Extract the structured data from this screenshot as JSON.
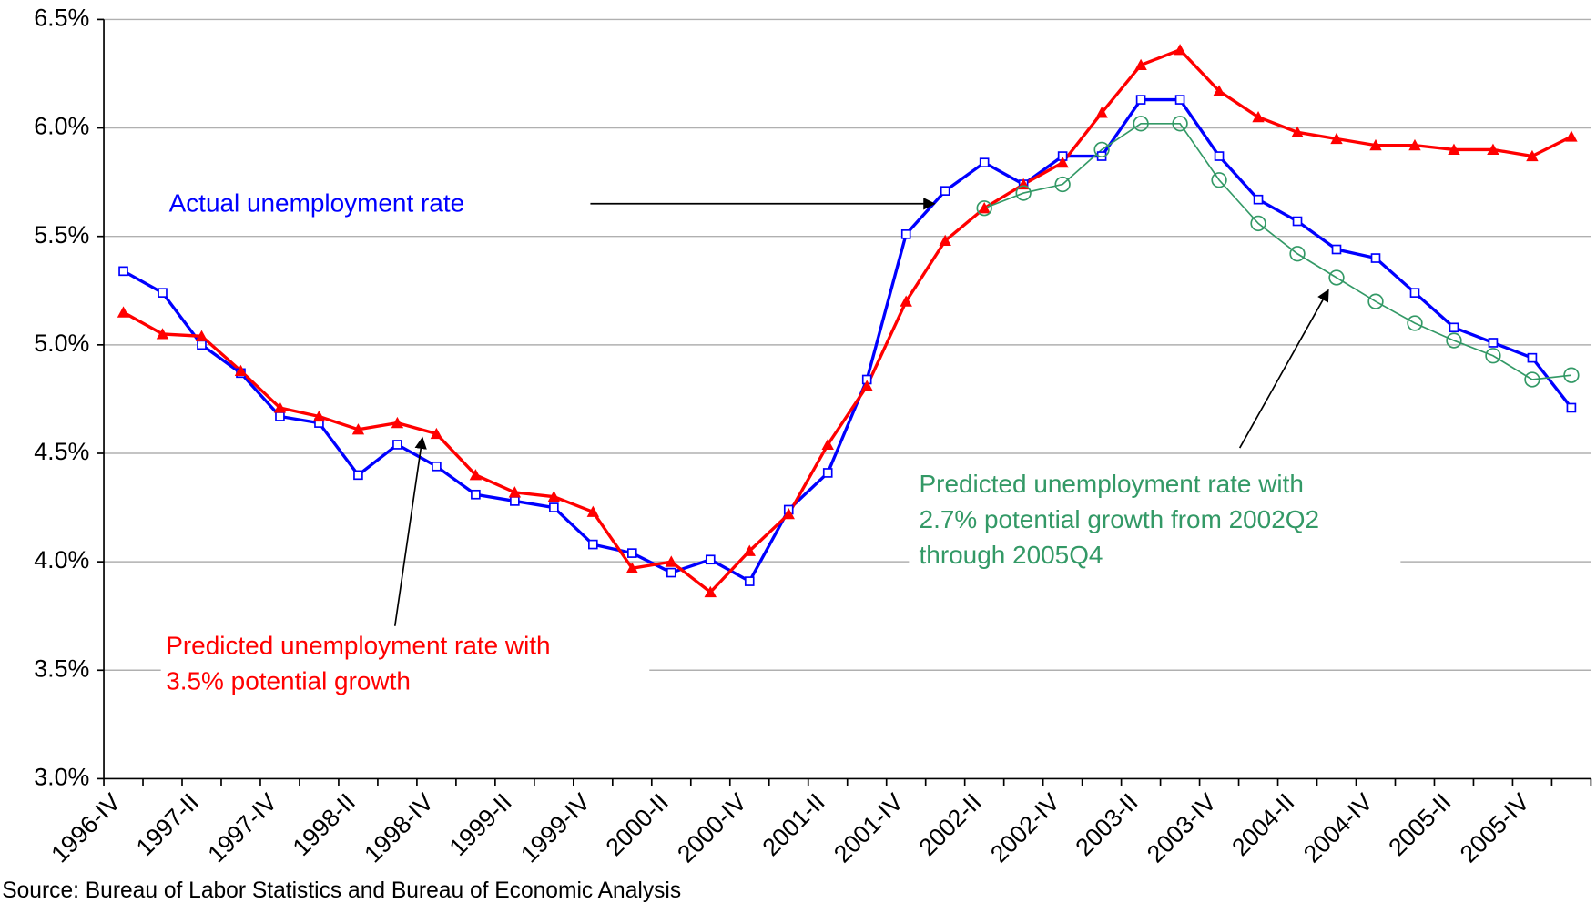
{
  "chart_data": {
    "type": "line",
    "categories": [
      "1996-IV",
      null,
      "1997-II",
      null,
      "1997-IV",
      null,
      "1998-II",
      null,
      "1998-IV",
      null,
      "1999-II",
      null,
      "1999-IV",
      null,
      "2000-II",
      null,
      "2000-IV",
      null,
      "2001-II",
      null,
      "2001-IV",
      null,
      "2002-II",
      null,
      "2002-IV",
      null,
      "2003-II",
      null,
      "2003-IV",
      null,
      "2004-II",
      null,
      "2004-IV",
      null,
      "2005-II",
      null,
      "2005-IV",
      null
    ],
    "series": [
      {
        "color": "#0000ff",
        "marker": "square",
        "values": [
          5.34,
          5.24,
          5.0,
          4.87,
          4.67,
          4.64,
          4.4,
          4.54,
          4.44,
          4.31,
          4.28,
          4.25,
          4.08,
          4.04,
          3.95,
          4.01,
          3.91,
          4.24,
          4.41,
          4.84,
          5.51,
          5.71,
          5.84,
          5.74,
          5.87,
          5.87,
          6.13,
          6.13,
          5.87,
          5.67,
          5.57,
          5.44,
          5.4,
          5.24,
          5.08,
          5.01,
          4.94,
          4.71
        ]
      },
      {
        "color": "#ff0000",
        "marker": "triangle",
        "values": [
          5.15,
          5.05,
          5.04,
          4.88,
          4.71,
          4.67,
          4.61,
          4.64,
          4.59,
          4.4,
          4.32,
          4.3,
          4.23,
          3.97,
          4.0,
          3.86,
          4.05,
          4.22,
          4.54,
          4.81,
          5.2,
          5.48,
          5.63,
          5.74,
          5.84,
          6.07,
          6.29,
          6.36,
          6.17,
          6.05,
          5.98,
          5.95,
          5.92,
          5.92,
          5.9,
          5.9,
          5.87,
          5.96
        ]
      },
      {
        "color": "#339966",
        "marker": "circle",
        "values": [
          null,
          null,
          null,
          null,
          null,
          null,
          null,
          null,
          null,
          null,
          null,
          null,
          null,
          null,
          null,
          null,
          null,
          null,
          null,
          null,
          null,
          null,
          5.63,
          5.7,
          5.74,
          5.9,
          6.02,
          6.02,
          5.76,
          5.56,
          5.42,
          5.31,
          5.2,
          5.1,
          5.02,
          4.95,
          4.84,
          4.86
        ]
      }
    ],
    "ylim": [
      3.0,
      6.5
    ],
    "yticks": [
      {
        "value": 3.0,
        "label": "3.0%"
      },
      {
        "value": 3.5,
        "label": "3.5%"
      },
      {
        "value": 4.0,
        "label": "4.0%"
      },
      {
        "value": 4.5,
        "label": "4.5%"
      },
      {
        "value": 5.0,
        "label": "5.0%"
      },
      {
        "value": 5.5,
        "label": "5.5%"
      },
      {
        "value": 6.0,
        "label": "6.0%"
      },
      {
        "value": 6.5,
        "label": "6.5%"
      }
    ],
    "grid": true,
    "annotations": [
      {
        "lines": [
          "Actual unemployment rate"
        ],
        "color": "#0000ff"
      },
      {
        "lines": [
          "Predicted unemployment rate with",
          "3.5%  potential growth"
        ],
        "color": "#ff0000"
      },
      {
        "lines": [
          "Predicted unemployment rate with",
          "2.7% potential growth from 2002Q2",
          "through 2005Q4"
        ],
        "color": "#339966"
      }
    ],
    "source": "Source: Bureau of Labor Statistics and Bureau of Economic Analysis"
  }
}
